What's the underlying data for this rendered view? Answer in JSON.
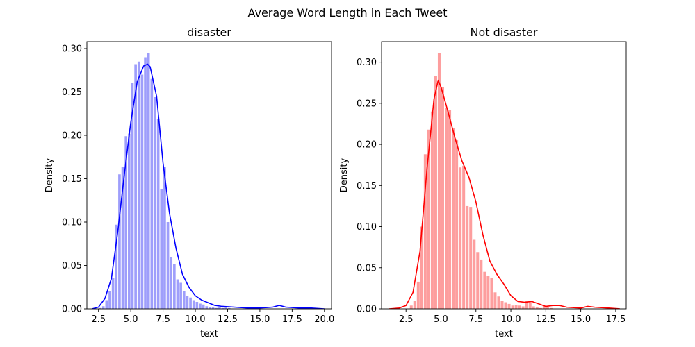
{
  "figure_title": "Average Word Length in Each Tweet",
  "chart_data": [
    {
      "type": "histogram",
      "title": "disaster",
      "xlabel": "text",
      "ylabel": "Density",
      "color": "#0000ff",
      "bar_fill": "#9e9efb",
      "xlim": [
        1.6,
        20.55
      ],
      "ylim": [
        0,
        0.308
      ],
      "xticks": [
        2.5,
        5.0,
        7.5,
        10.0,
        12.5,
        15.0,
        17.5,
        20.0
      ],
      "xtick_labels": [
        "2.5",
        "5.0",
        "7.5",
        "10.0",
        "12.5",
        "15.0",
        "17.5",
        "20.0"
      ],
      "yticks": [
        0.0,
        0.05,
        0.1,
        0.15,
        0.2,
        0.25,
        0.3
      ],
      "ytick_labels": [
        "0.00",
        "0.05",
        "0.10",
        "0.15",
        "0.20",
        "0.25",
        "0.30"
      ],
      "bins": {
        "edges": [
          2.5,
          2.75,
          3.0,
          3.25,
          3.5,
          3.75,
          4.0,
          4.25,
          4.5,
          4.75,
          5.0,
          5.25,
          5.5,
          5.75,
          6.0,
          6.25,
          6.5,
          6.75,
          7.0,
          7.25,
          7.5,
          7.75,
          8.0,
          8.25,
          8.5,
          8.75,
          9.0,
          9.25,
          9.5,
          9.75,
          10.0,
          10.25,
          10.5,
          10.75,
          11.0,
          11.25,
          11.5,
          11.75,
          12.0,
          12.25,
          12.5,
          12.75
        ],
        "density": [
          0.001,
          0.003,
          0.01,
          0.02,
          0.036,
          0.097,
          0.155,
          0.164,
          0.199,
          0.202,
          0.26,
          0.282,
          0.285,
          0.27,
          0.29,
          0.295,
          0.265,
          0.244,
          0.219,
          0.138,
          0.164,
          0.1,
          0.06,
          0.052,
          0.034,
          0.03,
          0.02,
          0.015,
          0.013,
          0.01,
          0.008,
          0.006,
          0.005,
          0.003,
          0.002,
          0.002,
          0.001,
          0.002,
          0.001,
          0.002,
          0.001
        ]
      },
      "kde": {
        "x": [
          2.0,
          2.5,
          3.0,
          3.5,
          4.0,
          4.5,
          5.0,
          5.5,
          6.0,
          6.3,
          6.5,
          7.0,
          7.5,
          8.0,
          8.5,
          9.0,
          9.5,
          10.0,
          10.5,
          11.0,
          11.5,
          12.0,
          13.0,
          14.0,
          15.0,
          16.0,
          16.5,
          17.0,
          18.0,
          19.0,
          20.0
        ],
        "y": [
          0.0,
          0.002,
          0.012,
          0.035,
          0.09,
          0.155,
          0.215,
          0.262,
          0.28,
          0.282,
          0.279,
          0.245,
          0.168,
          0.11,
          0.07,
          0.04,
          0.025,
          0.015,
          0.01,
          0.007,
          0.004,
          0.003,
          0.002,
          0.001,
          0.001,
          0.002,
          0.004,
          0.002,
          0.001,
          0.001,
          0.0
        ]
      }
    },
    {
      "type": "histogram",
      "title": "Not disaster",
      "xlabel": "text",
      "ylabel": "Density",
      "color": "#ff0000",
      "bar_fill": "#fd9e9e",
      "xlim": [
        0.75,
        18.25
      ],
      "ylim": [
        0,
        0.325
      ],
      "xticks": [
        2.5,
        5.0,
        7.5,
        10.0,
        12.5,
        15.0,
        17.5
      ],
      "xtick_labels": [
        "2.5",
        "5.0",
        "7.5",
        "10.0",
        "12.5",
        "15.0",
        "17.5"
      ],
      "yticks": [
        0.0,
        0.05,
        0.1,
        0.15,
        0.2,
        0.25,
        0.3
      ],
      "ytick_labels": [
        "0.00",
        "0.05",
        "0.10",
        "0.15",
        "0.20",
        "0.25",
        "0.30"
      ],
      "bins": {
        "edges": [
          2.75,
          3.0,
          3.25,
          3.5,
          3.75,
          4.0,
          4.25,
          4.5,
          4.75,
          5.0,
          5.25,
          5.5,
          5.75,
          6.0,
          6.25,
          6.5,
          6.75,
          7.0,
          7.25,
          7.5,
          7.75,
          8.0,
          8.25,
          8.5,
          8.75,
          9.0,
          9.25,
          9.5,
          9.75,
          10.0,
          10.25,
          10.5,
          10.75,
          11.0,
          11.25,
          11.5,
          11.75,
          12.0,
          12.25,
          12.5,
          12.75,
          13.0
        ],
        "density": [
          0.004,
          0.01,
          0.033,
          0.1,
          0.188,
          0.218,
          0.24,
          0.283,
          0.311,
          0.27,
          0.244,
          0.242,
          0.22,
          0.205,
          0.172,
          0.174,
          0.125,
          0.124,
          0.084,
          0.069,
          0.06,
          0.045,
          0.04,
          0.038,
          0.02,
          0.015,
          0.01,
          0.008,
          0.006,
          0.004,
          0.005,
          0.004,
          0.003,
          0.01,
          0.008,
          0.003,
          0.002,
          0.001,
          0.003,
          0.002,
          0.001
        ]
      },
      "kde": {
        "x": [
          1.3,
          2.0,
          2.5,
          3.0,
          3.5,
          4.0,
          4.5,
          4.8,
          5.0,
          5.5,
          6.0,
          6.5,
          7.0,
          7.5,
          8.0,
          8.5,
          9.0,
          9.5,
          10.0,
          10.5,
          11.0,
          11.5,
          12.0,
          12.5,
          13.0,
          13.5,
          14.0,
          15.0,
          15.5,
          16.0,
          17.0,
          17.8
        ],
        "y": [
          0.0,
          0.001,
          0.004,
          0.02,
          0.07,
          0.17,
          0.255,
          0.278,
          0.27,
          0.24,
          0.208,
          0.18,
          0.16,
          0.13,
          0.09,
          0.058,
          0.042,
          0.03,
          0.016,
          0.009,
          0.008,
          0.009,
          0.006,
          0.003,
          0.004,
          0.004,
          0.002,
          0.001,
          0.003,
          0.002,
          0.001,
          0.0
        ]
      }
    }
  ]
}
